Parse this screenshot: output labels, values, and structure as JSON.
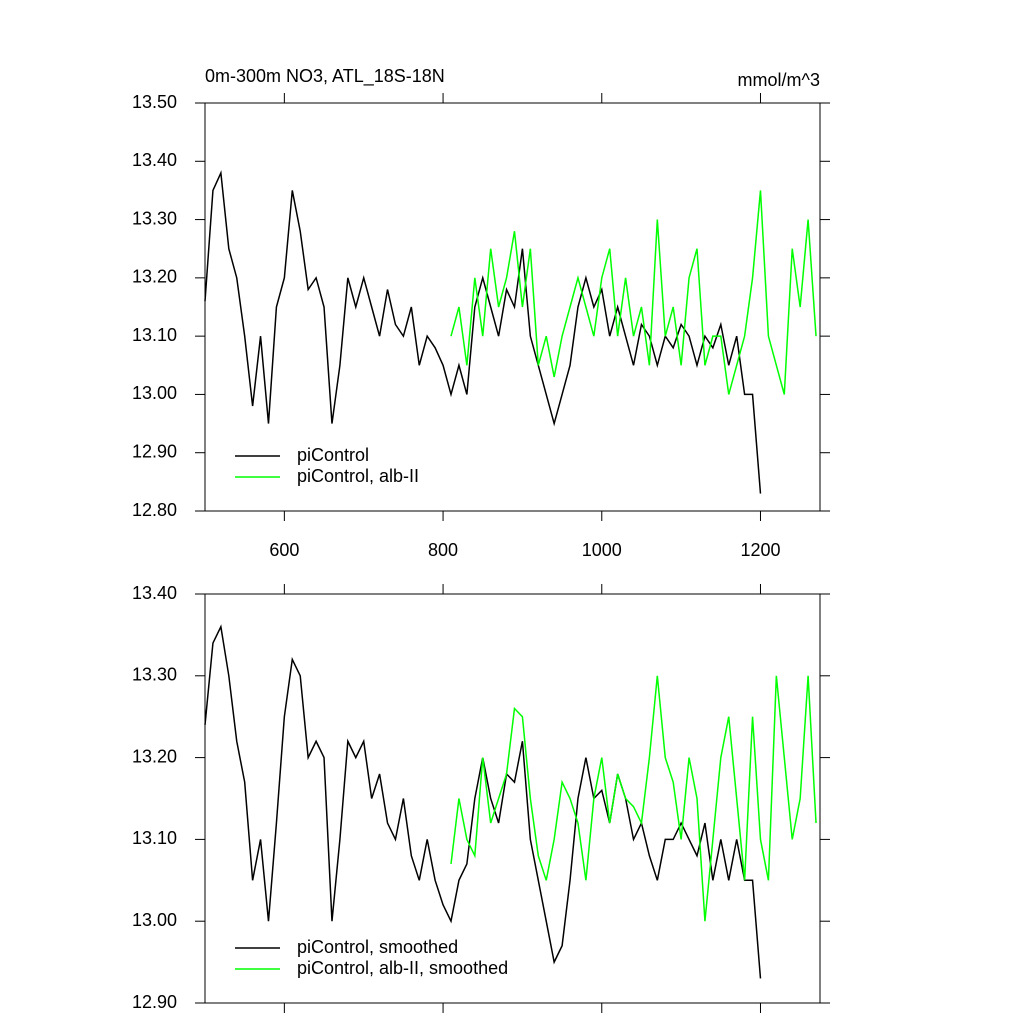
{
  "chart_data": [
    {
      "type": "line",
      "title": "0m-300m NO3, ATL_18S-18N",
      "unit_label": "mmol/m^3",
      "xlim": [
        500,
        1275
      ],
      "xticks": [
        600,
        800,
        1000,
        1200
      ],
      "show_xtick_labels": true,
      "ylim": [
        12.8,
        13.5
      ],
      "yticks": [
        {
          "value": 12.8,
          "label": "12.80"
        },
        {
          "value": 12.9,
          "label": "12.90"
        },
        {
          "value": 13.0,
          "label": "13.00"
        },
        {
          "value": 13.1,
          "label": "13.10"
        },
        {
          "value": 13.2,
          "label": "13.20"
        },
        {
          "value": 13.3,
          "label": "13.30"
        },
        {
          "value": 13.4,
          "label": "13.40"
        },
        {
          "value": 13.5,
          "label": "13.50"
        }
      ],
      "legend": "lower left",
      "series": [
        {
          "name": "piControl",
          "color": "#000000",
          "x": [
            500,
            510,
            520,
            530,
            540,
            550,
            560,
            570,
            580,
            590,
            600,
            610,
            620,
            630,
            640,
            650,
            660,
            670,
            680,
            690,
            700,
            710,
            720,
            730,
            740,
            750,
            760,
            770,
            780,
            790,
            800,
            810,
            820,
            830,
            840,
            850,
            860,
            870,
            880,
            890,
            900,
            910,
            920,
            930,
            940,
            950,
            960,
            970,
            980,
            990,
            1000,
            1010,
            1020,
            1030,
            1040,
            1050,
            1060,
            1070,
            1080,
            1090,
            1100,
            1110,
            1120,
            1130,
            1140,
            1150,
            1160,
            1170,
            1180,
            1190,
            1200
          ],
          "values": [
            13.16,
            13.35,
            13.38,
            13.25,
            13.2,
            13.1,
            12.98,
            13.1,
            12.95,
            13.15,
            13.2,
            13.35,
            13.28,
            13.18,
            13.2,
            13.15,
            12.95,
            13.05,
            13.2,
            13.15,
            13.2,
            13.15,
            13.1,
            13.18,
            13.12,
            13.1,
            13.15,
            13.05,
            13.1,
            13.08,
            13.05,
            13.0,
            13.05,
            13.0,
            13.15,
            13.2,
            13.15,
            13.1,
            13.18,
            13.15,
            13.25,
            13.1,
            13.05,
            13.0,
            12.95,
            13.0,
            13.05,
            13.15,
            13.2,
            13.15,
            13.18,
            13.1,
            13.15,
            13.1,
            13.05,
            13.12,
            13.1,
            13.05,
            13.1,
            13.08,
            13.12,
            13.1,
            13.05,
            13.1,
            13.08,
            13.12,
            13.05,
            13.1,
            13.0,
            13.0,
            12.83
          ]
        },
        {
          "name": "piControl, alb-II",
          "color": "#00ff00",
          "x": [
            810,
            820,
            830,
            840,
            850,
            860,
            870,
            880,
            890,
            900,
            910,
            920,
            930,
            940,
            950,
            960,
            970,
            980,
            990,
            1000,
            1010,
            1020,
            1030,
            1040,
            1050,
            1060,
            1070,
            1080,
            1090,
            1100,
            1110,
            1120,
            1130,
            1140,
            1150,
            1160,
            1170,
            1180,
            1190,
            1200,
            1210,
            1220,
            1230,
            1240,
            1250,
            1260,
            1270
          ],
          "values": [
            13.1,
            13.15,
            13.05,
            13.2,
            13.1,
            13.25,
            13.15,
            13.2,
            13.28,
            13.15,
            13.25,
            13.05,
            13.1,
            13.03,
            13.1,
            13.15,
            13.2,
            13.15,
            13.1,
            13.2,
            13.25,
            13.1,
            13.2,
            13.1,
            13.15,
            13.05,
            13.3,
            13.1,
            13.15,
            13.05,
            13.2,
            13.25,
            13.05,
            13.1,
            13.1,
            13.0,
            13.05,
            13.1,
            13.2,
            13.35,
            13.1,
            13.05,
            13.0,
            13.25,
            13.15,
            13.3,
            13.1
          ]
        }
      ]
    },
    {
      "type": "line",
      "xlim": [
        500,
        1275
      ],
      "xticks": [
        600,
        800,
        1000,
        1200
      ],
      "show_xtick_labels": false,
      "ylim": [
        12.9,
        13.4
      ],
      "yticks": [
        {
          "value": 12.9,
          "label": "12.90"
        },
        {
          "value": 13.0,
          "label": "13.00"
        },
        {
          "value": 13.1,
          "label": "13.10"
        },
        {
          "value": 13.2,
          "label": "13.20"
        },
        {
          "value": 13.3,
          "label": "13.30"
        },
        {
          "value": 13.4,
          "label": "13.40"
        }
      ],
      "legend": "lower left",
      "series": [
        {
          "name": "piControl, smoothed",
          "color": "#000000",
          "x": [
            500,
            510,
            520,
            530,
            540,
            550,
            560,
            570,
            580,
            590,
            600,
            610,
            620,
            630,
            640,
            650,
            660,
            670,
            680,
            690,
            700,
            710,
            720,
            730,
            740,
            750,
            760,
            770,
            780,
            790,
            800,
            810,
            820,
            830,
            840,
            850,
            860,
            870,
            880,
            890,
            900,
            910,
            920,
            930,
            940,
            950,
            960,
            970,
            980,
            990,
            1000,
            1010,
            1020,
            1030,
            1040,
            1050,
            1060,
            1070,
            1080,
            1090,
            1100,
            1110,
            1120,
            1130,
            1140,
            1150,
            1160,
            1170,
            1180,
            1190,
            1200
          ],
          "values": [
            13.24,
            13.34,
            13.36,
            13.3,
            13.22,
            13.17,
            13.05,
            13.1,
            13.0,
            13.12,
            13.25,
            13.32,
            13.3,
            13.2,
            13.22,
            13.2,
            13.0,
            13.1,
            13.22,
            13.2,
            13.22,
            13.15,
            13.18,
            13.12,
            13.1,
            13.15,
            13.08,
            13.05,
            13.1,
            13.05,
            13.02,
            13.0,
            13.05,
            13.07,
            13.15,
            13.2,
            13.15,
            13.12,
            13.18,
            13.17,
            13.22,
            13.1,
            13.05,
            13.0,
            12.95,
            12.97,
            13.05,
            13.15,
            13.2,
            13.15,
            13.16,
            13.12,
            13.18,
            13.15,
            13.1,
            13.12,
            13.08,
            13.05,
            13.1,
            13.1,
            13.12,
            13.1,
            13.08,
            13.12,
            13.05,
            13.1,
            13.05,
            13.1,
            13.05,
            13.05,
            12.93
          ]
        },
        {
          "name": "piControl, alb-II, smoothed",
          "color": "#00ff00",
          "x": [
            810,
            820,
            830,
            840,
            850,
            860,
            870,
            880,
            890,
            900,
            910,
            920,
            930,
            940,
            950,
            960,
            970,
            980,
            990,
            1000,
            1010,
            1020,
            1030,
            1040,
            1050,
            1060,
            1070,
            1080,
            1090,
            1100,
            1110,
            1120,
            1130,
            1140,
            1150,
            1160,
            1170,
            1180,
            1190,
            1200,
            1210,
            1220,
            1230,
            1240,
            1250,
            1260,
            1270
          ],
          "values": [
            13.07,
            13.15,
            13.1,
            13.08,
            13.2,
            13.12,
            13.15,
            13.18,
            13.26,
            13.25,
            13.15,
            13.08,
            13.05,
            13.1,
            13.17,
            13.15,
            13.12,
            13.05,
            13.15,
            13.2,
            13.12,
            13.18,
            13.15,
            13.14,
            13.12,
            13.2,
            13.3,
            13.2,
            13.17,
            13.1,
            13.2,
            13.15,
            13.0,
            13.1,
            13.2,
            13.25,
            13.15,
            13.05,
            13.25,
            13.1,
            13.05,
            13.3,
            13.2,
            13.1,
            13.15,
            13.3,
            13.12
          ]
        }
      ]
    }
  ]
}
